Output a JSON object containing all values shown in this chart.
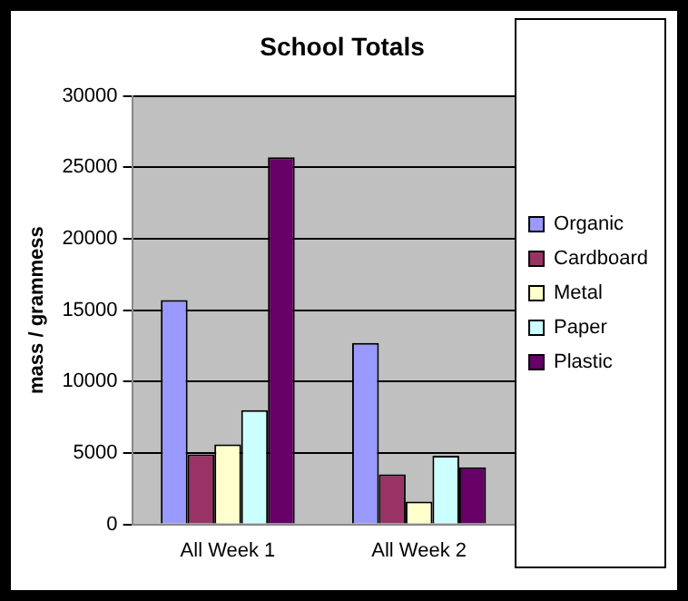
{
  "chart_data": {
    "type": "bar",
    "title": "School Totals",
    "ylabel": "mass / grammess",
    "categories": [
      "All Week 1",
      "All Week 2"
    ],
    "series": [
      {
        "name": "Organic",
        "color": "#9999ff",
        "values": [
          15700,
          12700
        ]
      },
      {
        "name": "Cardboard",
        "color": "#993366",
        "values": [
          4900,
          3500
        ]
      },
      {
        "name": "Metal",
        "color": "#ffffcc",
        "values": [
          5600,
          1600
        ]
      },
      {
        "name": "Paper",
        "color": "#ccffff",
        "values": [
          8000,
          4800
        ]
      },
      {
        "name": "Plastic",
        "color": "#660066",
        "values": [
          25700,
          4000
        ]
      }
    ],
    "ylim": [
      0,
      30000
    ],
    "yticks": [
      0,
      5000,
      10000,
      15000,
      20000,
      25000,
      30000
    ],
    "grid": "y",
    "legend": "right"
  }
}
